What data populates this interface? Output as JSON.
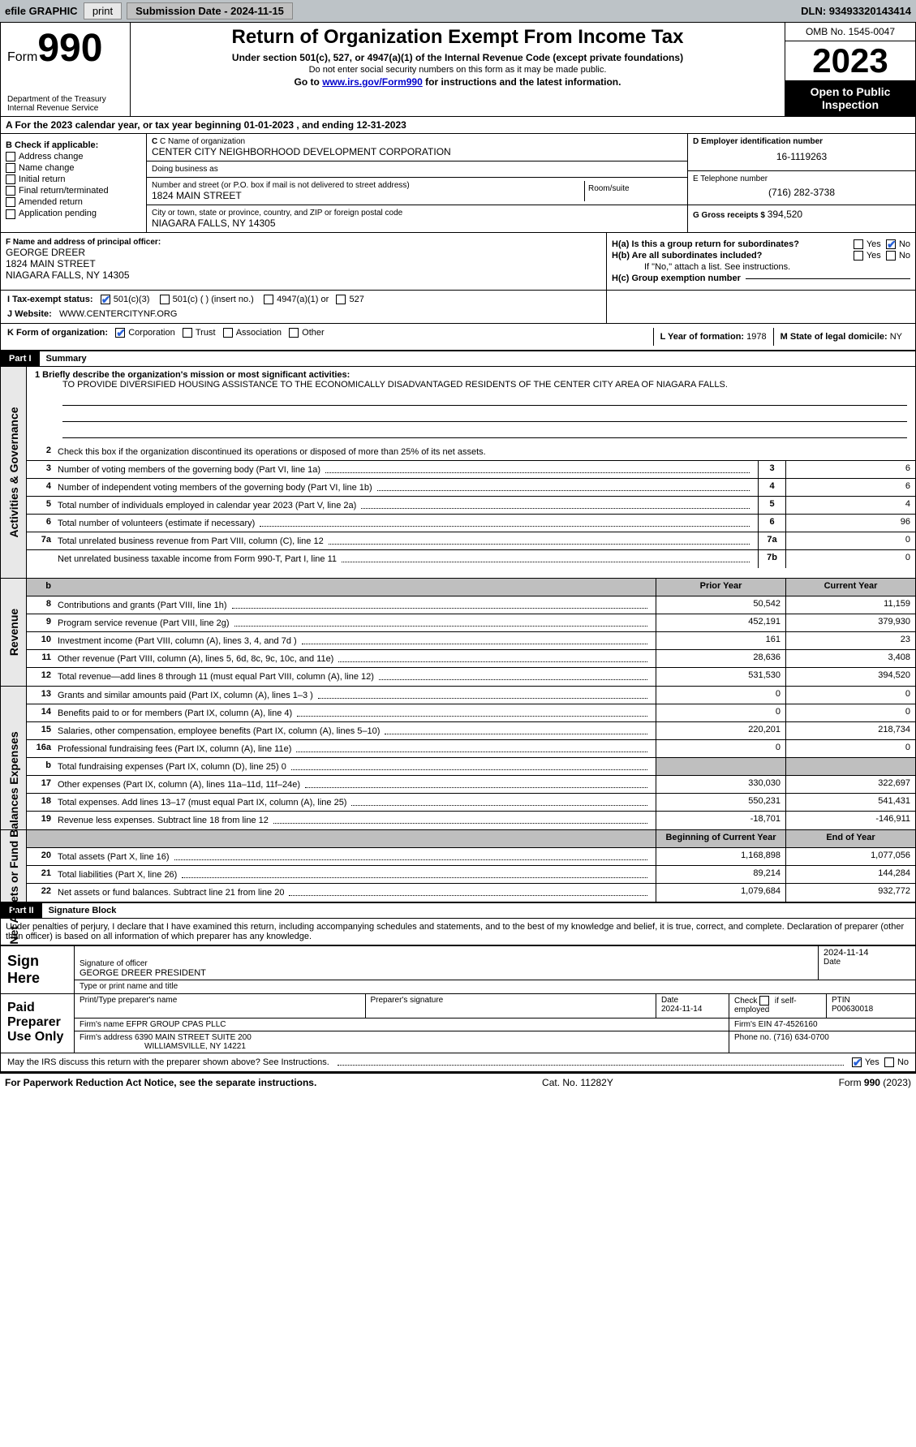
{
  "topbar": {
    "efile_label": "efile GRAPHIC",
    "print_btn": "print",
    "submission_label": "Submission Date - 2024-11-15",
    "dln_label": "DLN: 93493320143414"
  },
  "header": {
    "form_word": "Form",
    "form_no": "990",
    "dept1": "Department of the Treasury",
    "dept2": "Internal Revenue Service",
    "title": "Return of Organization Exempt From Income Tax",
    "sub1": "Under section 501(c), 527, or 4947(a)(1) of the Internal Revenue Code (except private foundations)",
    "sub2": "Do not enter social security numbers on this form as it may be made public.",
    "sub3_pre": "Go to ",
    "sub3_link": "www.irs.gov/Form990",
    "sub3_post": " for instructions and the latest information.",
    "omb": "OMB No. 1545-0047",
    "year": "2023",
    "open": "Open to Public Inspection"
  },
  "section_a": {
    "prefix": "A For the 2023 calendar year, or tax year beginning ",
    "begin": "01-01-2023",
    "mid": " , and ending ",
    "end": "12-31-2023"
  },
  "block_b": {
    "title": "B Check if applicable:",
    "items": [
      "Address change",
      "Name change",
      "Initial return",
      "Final return/terminated",
      "Amended return",
      "Application pending"
    ]
  },
  "block_c": {
    "name_lbl": "C Name of organization",
    "name": "CENTER CITY NEIGHBORHOOD DEVELOPMENT CORPORATION",
    "dba_lbl": "Doing business as",
    "dba": "",
    "addr_lbl": "Number and street (or P.O. box if mail is not delivered to street address)",
    "addr": "1824 MAIN STREET",
    "room_lbl": "Room/suite",
    "city_lbl": "City or town, state or province, country, and ZIP or foreign postal code",
    "city": "NIAGARA FALLS, NY  14305"
  },
  "block_de": {
    "d_lbl": "D Employer identification number",
    "d_val": "16-1119263",
    "e_lbl": "E Telephone number",
    "e_val": "(716) 282-3738",
    "g_lbl": "G Gross receipts $ ",
    "g_val": "394,520"
  },
  "block_f": {
    "lbl": "F Name and address of principal officer:",
    "name": "GEORGE DREER",
    "addr1": "1824 MAIN STREET",
    "addr2": "NIAGARA FALLS, NY  14305"
  },
  "block_h": {
    "ha_lbl": "H(a)  Is this a group return for subordinates?",
    "hb_lbl": "H(b)  Are all subordinates included?",
    "hb_note": "If \"No,\" attach a list. See instructions.",
    "hc_lbl": "H(c)  Group exemption number ",
    "yes": "Yes",
    "no": "No"
  },
  "row_i": {
    "lbl": "I    Tax-exempt status:",
    "o1": "501(c)(3)",
    "o2": "501(c) (   ) (insert no.)",
    "o3": "4947(a)(1) or",
    "o4": "527"
  },
  "row_j": {
    "lbl": "J   Website: ",
    "val": "WWW.CENTERCITYNF.ORG"
  },
  "row_k": {
    "lbl": "K Form of organization:",
    "o1": "Corporation",
    "o2": "Trust",
    "o3": "Association",
    "o4": "Other"
  },
  "row_lm": {
    "l_lbl": "L Year of formation: ",
    "l_val": "1978",
    "m_lbl": "M State of legal domicile: ",
    "m_val": "NY"
  },
  "part1": {
    "bar": "Part I",
    "title": "Summary",
    "mission_lbl": "1   Briefly describe the organization's mission or most significant activities:",
    "mission": "TO PROVIDE DIVERSIFIED HOUSING ASSISTANCE TO THE ECONOMICALLY DISADVANTAGED RESIDENTS OF THE CENTER CITY AREA OF NIAGARA FALLS.",
    "l2": "Check this box          if the organization discontinued its operations or disposed of more than 25% of its net assets.",
    "sections": {
      "gov": "Activities & Governance",
      "rev": "Revenue",
      "exp": "Expenses",
      "net": "Net Assets or Fund Balances"
    },
    "gov_lines": [
      {
        "n": "3",
        "d": "Number of voting members of the governing body (Part VI, line 1a)",
        "box": "3",
        "v": "6"
      },
      {
        "n": "4",
        "d": "Number of independent voting members of the governing body (Part VI, line 1b)",
        "box": "4",
        "v": "6"
      },
      {
        "n": "5",
        "d": "Total number of individuals employed in calendar year 2023 (Part V, line 2a)",
        "box": "5",
        "v": "4"
      },
      {
        "n": "6",
        "d": "Total number of volunteers (estimate if necessary)",
        "box": "6",
        "v": "96"
      },
      {
        "n": "7a",
        "d": "Total unrelated business revenue from Part VIII, column (C), line 12",
        "box": "7a",
        "v": "0"
      },
      {
        "n": "",
        "d": "Net unrelated business taxable income from Form 990-T, Part I, line 11",
        "box": "7b",
        "v": "0"
      }
    ],
    "hdr_b": "b",
    "hdr_prior": "Prior Year",
    "hdr_curr": "Current Year",
    "rev_lines": [
      {
        "n": "8",
        "d": "Contributions and grants (Part VIII, line 1h)",
        "p": "50,542",
        "c": "11,159"
      },
      {
        "n": "9",
        "d": "Program service revenue (Part VIII, line 2g)",
        "p": "452,191",
        "c": "379,930"
      },
      {
        "n": "10",
        "d": "Investment income (Part VIII, column (A), lines 3, 4, and 7d )",
        "p": "161",
        "c": "23"
      },
      {
        "n": "11",
        "d": "Other revenue (Part VIII, column (A), lines 5, 6d, 8c, 9c, 10c, and 11e)",
        "p": "28,636",
        "c": "3,408"
      },
      {
        "n": "12",
        "d": "Total revenue—add lines 8 through 11 (must equal Part VIII, column (A), line 12)",
        "p": "531,530",
        "c": "394,520"
      }
    ],
    "exp_lines": [
      {
        "n": "13",
        "d": "Grants and similar amounts paid (Part IX, column (A), lines 1–3 )",
        "p": "0",
        "c": "0"
      },
      {
        "n": "14",
        "d": "Benefits paid to or for members (Part IX, column (A), line 4)",
        "p": "0",
        "c": "0"
      },
      {
        "n": "15",
        "d": "Salaries, other compensation, employee benefits (Part IX, column (A), lines 5–10)",
        "p": "220,201",
        "c": "218,734"
      },
      {
        "n": "16a",
        "d": "Professional fundraising fees (Part IX, column (A), line 11e)",
        "p": "0",
        "c": "0"
      },
      {
        "n": "b",
        "d": "Total fundraising expenses (Part IX, column (D), line 25) 0",
        "p": "grey",
        "c": "grey"
      },
      {
        "n": "17",
        "d": "Other expenses (Part IX, column (A), lines 11a–11d, 11f–24e)",
        "p": "330,030",
        "c": "322,697"
      },
      {
        "n": "18",
        "d": "Total expenses. Add lines 13–17 (must equal Part IX, column (A), line 25)",
        "p": "550,231",
        "c": "541,431"
      },
      {
        "n": "19",
        "d": "Revenue less expenses. Subtract line 18 from line 12",
        "p": "-18,701",
        "c": "-146,911"
      }
    ],
    "hdr_beg": "Beginning of Current Year",
    "hdr_end": "End of Year",
    "net_lines": [
      {
        "n": "20",
        "d": "Total assets (Part X, line 16)",
        "p": "1,168,898",
        "c": "1,077,056"
      },
      {
        "n": "21",
        "d": "Total liabilities (Part X, line 26)",
        "p": "89,214",
        "c": "144,284"
      },
      {
        "n": "22",
        "d": "Net assets or fund balances. Subtract line 21 from line 20",
        "p": "1,079,684",
        "c": "932,772"
      }
    ]
  },
  "part2": {
    "bar": "Part II",
    "title": "Signature Block",
    "decl": "Under penalties of perjury, I declare that I have examined this return, including accompanying schedules and statements, and to the best of my knowledge and belief, it is true, correct, and complete. Declaration of preparer (other than officer) is based on all information of which preparer has any knowledge.",
    "sign_here": "Sign Here",
    "sig_lbl": "Signature of officer",
    "sig_name": "GEORGE DREER  PRESIDENT",
    "sig_type_lbl": "Type or print name and title",
    "date_lbl": "Date",
    "date_val": "2024-11-14",
    "paid": "Paid Preparer Use Only",
    "prep_name_lbl": "Print/Type preparer's name",
    "prep_sig_lbl": "Preparer's signature",
    "prep_date": "2024-11-14",
    "check_lbl": "Check         if self-employed",
    "ptin_lbl": "PTIN",
    "ptin": "P00630018",
    "firm_name_lbl": "Firm's name     ",
    "firm_name": "EFPR GROUP CPAS PLLC",
    "firm_ein_lbl": "Firm's EIN  ",
    "firm_ein": "47-4526160",
    "firm_addr_lbl": "Firm's address ",
    "firm_addr1": "6390 MAIN STREET SUITE 200",
    "firm_addr2": "WILLIAMSVILLE, NY  14221",
    "phone_lbl": "Phone no. ",
    "phone": "(716) 634-0700",
    "discuss": "May the IRS discuss this return with the preparer shown above? See Instructions.",
    "yes": "Yes",
    "no": "No"
  },
  "footer": {
    "left": "For Paperwork Reduction Act Notice, see the separate instructions.",
    "mid": "Cat. No. 11282Y",
    "right": "Form 990 (2023)"
  }
}
